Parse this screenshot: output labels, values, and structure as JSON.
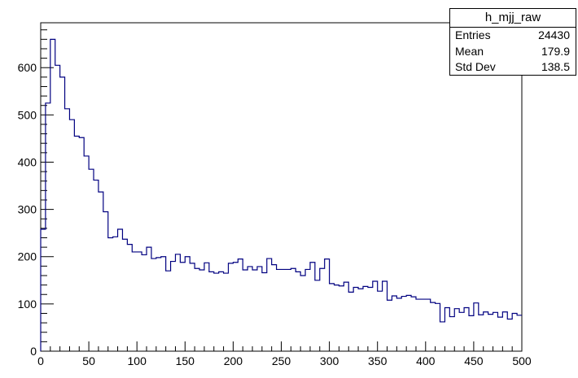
{
  "chart_data": {
    "type": "histogram",
    "title": "",
    "xlabel": "",
    "ylabel": "",
    "xlim": [
      0,
      500
    ],
    "ylim": [
      0,
      695
    ],
    "bin_width": 5,
    "x_ticks": [
      "0",
      "50",
      "100",
      "150",
      "200",
      "250",
      "300",
      "350",
      "400",
      "450",
      "500"
    ],
    "y_ticks": [
      "0",
      "100",
      "200",
      "300",
      "400",
      "500",
      "600"
    ],
    "grid": false,
    "line_color": "#000080",
    "values": [
      258,
      525,
      660,
      605,
      580,
      513,
      490,
      455,
      452,
      413,
      385,
      362,
      337,
      295,
      240,
      242,
      258,
      237,
      226,
      210,
      210,
      204,
      220,
      196,
      198,
      200,
      170,
      190,
      205,
      188,
      200,
      186,
      175,
      172,
      187,
      168,
      165,
      168,
      165,
      186,
      188,
      195,
      172,
      179,
      172,
      179,
      166,
      196,
      183,
      173,
      173,
      173,
      175,
      168,
      160,
      173,
      188,
      150,
      175,
      195,
      143,
      140,
      138,
      146,
      125,
      135,
      132,
      137,
      135,
      148,
      127,
      148,
      108,
      117,
      112,
      116,
      118,
      115,
      110,
      110,
      110,
      103,
      101,
      62,
      92,
      73,
      90,
      82,
      92,
      75,
      102,
      77,
      83,
      78,
      82,
      72,
      83,
      68,
      80,
      76
    ]
  },
  "stats": {
    "title": "h_mjj_raw",
    "rows": [
      {
        "label": "Entries",
        "value": "24430"
      },
      {
        "label": "Mean",
        "value": "179.9"
      },
      {
        "label": "Std Dev",
        "value": "138.5"
      }
    ]
  }
}
